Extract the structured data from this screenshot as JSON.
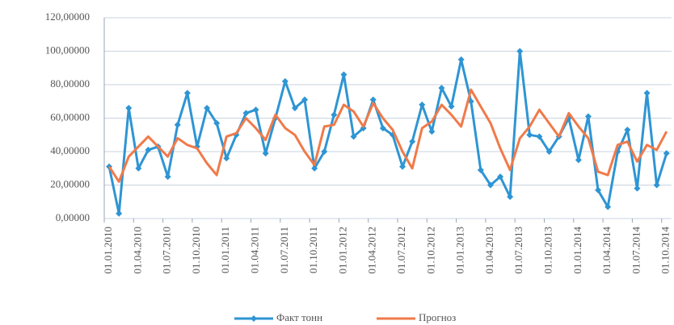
{
  "chart_data": {
    "type": "line",
    "categories": [
      "01.01.2010",
      null,
      null,
      "01.04.2010",
      null,
      null,
      "01.07.2010",
      null,
      null,
      "01.10.2010",
      null,
      null,
      "01.01.2011",
      null,
      null,
      "01.04.2011",
      null,
      null,
      "01.07.2011",
      null,
      null,
      "01.10.2011",
      null,
      null,
      "01.01.2012",
      null,
      null,
      "01.04.2012",
      null,
      null,
      "01.07.2012",
      null,
      null,
      "01.10.2012",
      null,
      null,
      "01.01.2013",
      null,
      null,
      "01.04.2013",
      null,
      null,
      "01.07.2013",
      null,
      null,
      "01.10.2013",
      null,
      null,
      "01.01.2014",
      null,
      null,
      "01.04.2014",
      null,
      null,
      "01.07.2014",
      null,
      null,
      "01.10.2014"
    ],
    "series": [
      {
        "name": "Факт тонн",
        "color": "#2e95d3",
        "marker": "diamond",
        "values": [
          31,
          3,
          66,
          30,
          41,
          43,
          25,
          56,
          75,
          43,
          66,
          57,
          36,
          50,
          63,
          65,
          39,
          60,
          82,
          66,
          71,
          30,
          40,
          62,
          86,
          49,
          54,
          71,
          54,
          50,
          31,
          46,
          68,
          52,
          78,
          67,
          95,
          70,
          29,
          20,
          25,
          13,
          100,
          50,
          49,
          40,
          49,
          60,
          35,
          61,
          17,
          7,
          40,
          53,
          18,
          75,
          20,
          39
        ]
      },
      {
        "name": "Прогноз",
        "color": "#f07a4a",
        "values": [
          31,
          22,
          37,
          43,
          49,
          43,
          37,
          48,
          44,
          42,
          33,
          26,
          49,
          51,
          60,
          54,
          47,
          62,
          54,
          50,
          40,
          32,
          55,
          56,
          68,
          64,
          55,
          69,
          60,
          53,
          40,
          30,
          54,
          58,
          68,
          62,
          55,
          77,
          67,
          57,
          42,
          29,
          48,
          55,
          65,
          57,
          49,
          63,
          55,
          48,
          28,
          26,
          44,
          46,
          34,
          44,
          41,
          52
        ]
      }
    ],
    "ylim": [
      0,
      120
    ],
    "yticks": [
      {
        "value": 0,
        "label": "0,00000"
      },
      {
        "value": 20,
        "label": "20,00000"
      },
      {
        "value": 40,
        "label": "40,00000"
      },
      {
        "value": 60,
        "label": "60,00000"
      },
      {
        "value": 80,
        "label": "80,00000"
      },
      {
        "value": 100,
        "label": "100,00000"
      },
      {
        "value": 120,
        "label": "120,00000"
      }
    ],
    "grid": true,
    "legend": "bottom"
  }
}
